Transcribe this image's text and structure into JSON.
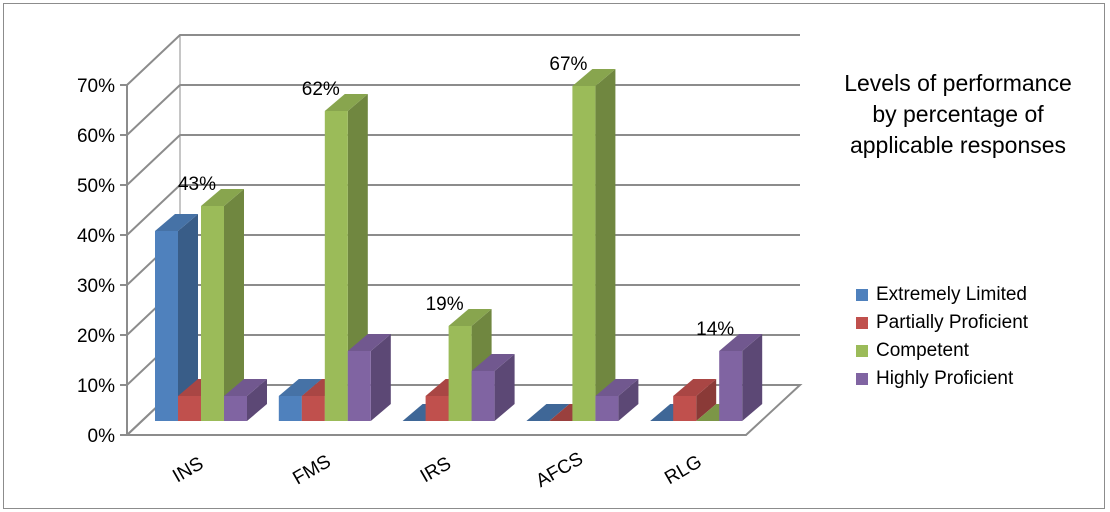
{
  "chart_data": {
    "type": "bar",
    "title": "Levels of performance\nby percentage of\napplicable responses",
    "xlabel": "",
    "ylabel": "",
    "categories": [
      "INS",
      "FMS",
      "IRS",
      "AFCS",
      "RLG"
    ],
    "ylim": [
      0,
      70
    ],
    "yticks": [
      "0%",
      "10%",
      "20%",
      "30%",
      "40%",
      "50%",
      "60%",
      "70%"
    ],
    "grid": true,
    "legend_position": "right",
    "series": [
      {
        "name": "Extremely Limited",
        "color": "#4f81bd",
        "values": [
          38,
          5,
          0,
          0,
          0
        ]
      },
      {
        "name": "Partially Proficient",
        "color": "#c0504d",
        "values": [
          5,
          5,
          5,
          0,
          5
        ]
      },
      {
        "name": "Competent",
        "color": "#9bbb59",
        "values": [
          43,
          62,
          19,
          67,
          0
        ]
      },
      {
        "name": "Highly Proficient",
        "color": "#8064a2",
        "values": [
          5,
          14,
          10,
          5,
          14
        ]
      }
    ],
    "data_labels": [
      {
        "category": "INS",
        "series": "Competent",
        "text": "43%"
      },
      {
        "category": "FMS",
        "series": "Competent",
        "text": "62%"
      },
      {
        "category": "IRS",
        "series": "Competent",
        "text": "19%"
      },
      {
        "category": "AFCS",
        "series": "Competent",
        "text": "67%"
      },
      {
        "category": "RLG",
        "series": "Highly Proficient",
        "text": "14%"
      }
    ]
  }
}
